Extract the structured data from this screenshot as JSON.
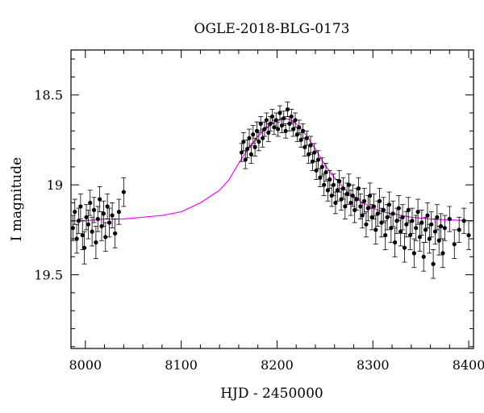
{
  "chart_data": {
    "type": "scatter",
    "title": "OGLE-2018-BLG-0173",
    "xlabel": "HJD - 2450000",
    "ylabel": "I magnitude",
    "xlim": [
      7985,
      8405
    ],
    "ylim": [
      19.91,
      18.25
    ],
    "y_inverted": true,
    "x_major_ticks": [
      8000,
      8100,
      8200,
      8300,
      8400
    ],
    "x_tick_labels": [
      "8000",
      "8100",
      "8200",
      "8300",
      "8400"
    ],
    "x_minor_step": 20,
    "y_major_ticks": [
      18.5,
      19,
      19.5
    ],
    "y_tick_labels": [
      "18.5",
      "19",
      "19.5"
    ],
    "y_minor_step": 0.1,
    "grid": false,
    "colors": {
      "data": "#000000",
      "model": "#ff00ff"
    },
    "series": [
      {
        "kind": "points_with_errorbars",
        "color": "#000000",
        "x": [
          7987,
          7989,
          7991,
          7993,
          7995,
          7997,
          7999,
          8001,
          8003,
          8005,
          8007,
          8009,
          8011,
          8013,
          8015,
          8017,
          8019,
          8021,
          8023,
          8025,
          8028,
          8031,
          8035,
          8040,
          8163,
          8165,
          8167,
          8169,
          8171,
          8173,
          8175,
          8177,
          8179,
          8181,
          8183,
          8185,
          8187,
          8189,
          8191,
          8193,
          8195,
          8197,
          8199,
          8201,
          8203,
          8205,
          8207,
          8209,
          8211,
          8213,
          8215,
          8217,
          8219,
          8221,
          8223,
          8225,
          8227,
          8229,
          8231,
          8233,
          8235,
          8237,
          8239,
          8241,
          8243,
          8245,
          8247,
          8249,
          8251,
          8253,
          8255,
          8257,
          8259,
          8261,
          8263,
          8265,
          8267,
          8269,
          8271,
          8273,
          8275,
          8277,
          8279,
          8281,
          8283,
          8285,
          8287,
          8289,
          8291,
          8293,
          8295,
          8297,
          8299,
          8301,
          8303,
          8305,
          8307,
          8309,
          8311,
          8313,
          8315,
          8317,
          8319,
          8321,
          8323,
          8325,
          8327,
          8329,
          8331,
          8333,
          8335,
          8337,
          8339,
          8341,
          8343,
          8345,
          8347,
          8349,
          8351,
          8353,
          8355,
          8357,
          8359,
          8361,
          8363,
          8365,
          8367,
          8369,
          8371,
          8373,
          8375,
          8380,
          8385,
          8390,
          8395,
          8400
        ],
        "y": [
          19.24,
          19.15,
          19.3,
          19.2,
          19.12,
          19.28,
          19.35,
          19.18,
          19.22,
          19.1,
          19.26,
          19.14,
          19.32,
          19.19,
          19.08,
          19.23,
          19.16,
          19.29,
          19.12,
          19.21,
          19.17,
          19.27,
          19.15,
          19.04,
          18.82,
          18.76,
          18.86,
          18.8,
          18.74,
          18.83,
          18.72,
          18.79,
          18.7,
          18.76,
          18.66,
          18.74,
          18.69,
          18.64,
          18.71,
          18.66,
          18.62,
          18.68,
          18.64,
          18.69,
          18.6,
          18.67,
          18.63,
          18.7,
          18.58,
          18.66,
          18.62,
          18.69,
          18.64,
          18.72,
          18.68,
          18.75,
          18.7,
          18.79,
          18.74,
          18.83,
          18.78,
          18.87,
          18.82,
          18.92,
          18.86,
          18.96,
          18.9,
          19.0,
          18.93,
          19.03,
          18.97,
          19.06,
          19.0,
          19.1,
          19.03,
          18.98,
          19.08,
          19.02,
          19.12,
          19.05,
          19.0,
          19.1,
          19.06,
          19.14,
          19.08,
          19.02,
          19.12,
          19.17,
          19.09,
          19.22,
          19.13,
          19.06,
          19.18,
          19.12,
          19.25,
          19.16,
          19.09,
          19.21,
          19.14,
          19.28,
          19.18,
          19.11,
          19.24,
          19.16,
          19.32,
          19.2,
          19.13,
          19.26,
          19.18,
          19.35,
          19.22,
          19.14,
          19.28,
          19.2,
          19.38,
          19.24,
          19.15,
          19.29,
          19.21,
          19.4,
          19.25,
          19.17,
          19.3,
          19.22,
          19.44,
          19.26,
          19.18,
          19.31,
          19.23,
          19.38,
          19.24,
          19.19,
          19.33,
          19.25,
          19.2,
          19.28
        ],
        "yerr": [
          0.07,
          0.07,
          0.08,
          0.07,
          0.07,
          0.08,
          0.09,
          0.07,
          0.08,
          0.07,
          0.08,
          0.07,
          0.09,
          0.07,
          0.07,
          0.08,
          0.07,
          0.08,
          0.07,
          0.08,
          0.07,
          0.08,
          0.07,
          0.08,
          0.05,
          0.05,
          0.05,
          0.05,
          0.05,
          0.05,
          0.05,
          0.05,
          0.05,
          0.05,
          0.04,
          0.05,
          0.04,
          0.04,
          0.05,
          0.04,
          0.04,
          0.04,
          0.04,
          0.04,
          0.04,
          0.04,
          0.04,
          0.04,
          0.04,
          0.04,
          0.04,
          0.04,
          0.04,
          0.04,
          0.04,
          0.04,
          0.04,
          0.05,
          0.04,
          0.05,
          0.05,
          0.05,
          0.05,
          0.05,
          0.05,
          0.05,
          0.05,
          0.06,
          0.05,
          0.06,
          0.05,
          0.06,
          0.06,
          0.06,
          0.06,
          0.06,
          0.06,
          0.06,
          0.07,
          0.06,
          0.06,
          0.07,
          0.06,
          0.07,
          0.06,
          0.06,
          0.07,
          0.07,
          0.07,
          0.07,
          0.07,
          0.07,
          0.07,
          0.07,
          0.08,
          0.07,
          0.07,
          0.08,
          0.07,
          0.08,
          0.07,
          0.07,
          0.08,
          0.07,
          0.08,
          0.07,
          0.07,
          0.08,
          0.07,
          0.08,
          0.07,
          0.07,
          0.08,
          0.07,
          0.08,
          0.07,
          0.07,
          0.08,
          0.07,
          0.08,
          0.07,
          0.07,
          0.08,
          0.07,
          0.08,
          0.07,
          0.07,
          0.08,
          0.07,
          0.08,
          0.07,
          0.07,
          0.08,
          0.07,
          0.07,
          0.08
        ]
      },
      {
        "kind": "model_curve",
        "color": "#ff00ff",
        "x": [
          7985,
          8000,
          8020,
          8040,
          8060,
          8080,
          8100,
          8120,
          8140,
          8150,
          8160,
          8170,
          8180,
          8190,
          8200,
          8205,
          8210,
          8215,
          8220,
          8230,
          8240,
          8250,
          8260,
          8270,
          8280,
          8290,
          8300,
          8310,
          8320,
          8340,
          8360,
          8380,
          8405
        ],
        "y": [
          19.2,
          19.2,
          19.19,
          19.19,
          19.18,
          19.17,
          19.15,
          19.1,
          19.03,
          18.97,
          18.88,
          18.8,
          18.73,
          18.68,
          18.64,
          18.634,
          18.633,
          18.64,
          18.66,
          18.72,
          18.8,
          18.89,
          18.96,
          19.02,
          19.07,
          19.1,
          19.13,
          19.15,
          19.16,
          19.18,
          19.19,
          19.195,
          19.2
        ]
      }
    ]
  }
}
